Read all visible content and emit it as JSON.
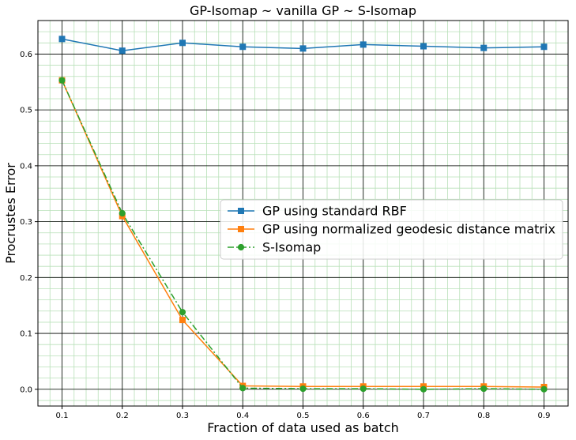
{
  "chart_data": {
    "type": "line",
    "title": "GP-Isomap ~ vanilla GP ~ S-Isomap",
    "xlabel": "Fraction of data used as batch",
    "ylabel": "Procrustes Error",
    "xlim": [
      0.06,
      0.94
    ],
    "ylim": [
      -0.03,
      0.66
    ],
    "x": [
      0.1,
      0.2,
      0.3,
      0.4,
      0.5,
      0.6,
      0.7,
      0.8,
      0.9
    ],
    "xticks": [
      "0.1",
      "0.2",
      "0.3",
      "0.4",
      "0.5",
      "0.6",
      "0.7",
      "0.8",
      "0.9"
    ],
    "yticks": [
      "0.0",
      "0.1",
      "0.2",
      "0.3",
      "0.4",
      "0.5",
      "0.6"
    ],
    "grid": true,
    "minor_grid": true,
    "legend_position": "center-right",
    "series": [
      {
        "name": "GP using standard RBF",
        "values": [
          0.627,
          0.606,
          0.62,
          0.613,
          0.61,
          0.617,
          0.614,
          0.611,
          0.613
        ],
        "color": "#1f77b4",
        "marker": "square",
        "dash": "solid"
      },
      {
        "name": "GP using normalized geodesic distance matrix",
        "values": [
          0.553,
          0.31,
          0.124,
          0.006,
          0.005,
          0.005,
          0.005,
          0.005,
          0.004
        ],
        "color": "#ff7f0e",
        "marker": "square",
        "dash": "solid"
      },
      {
        "name": "S-Isomap",
        "values": [
          0.553,
          0.315,
          0.138,
          0.002,
          0.001,
          0.001,
          0.0,
          0.001,
          0.0
        ],
        "color": "#2ca02c",
        "marker": "circle",
        "dash": "dashdot"
      }
    ],
    "colors": {
      "major_grid": "#000000",
      "minor_grid": "#b8e0b8"
    }
  }
}
